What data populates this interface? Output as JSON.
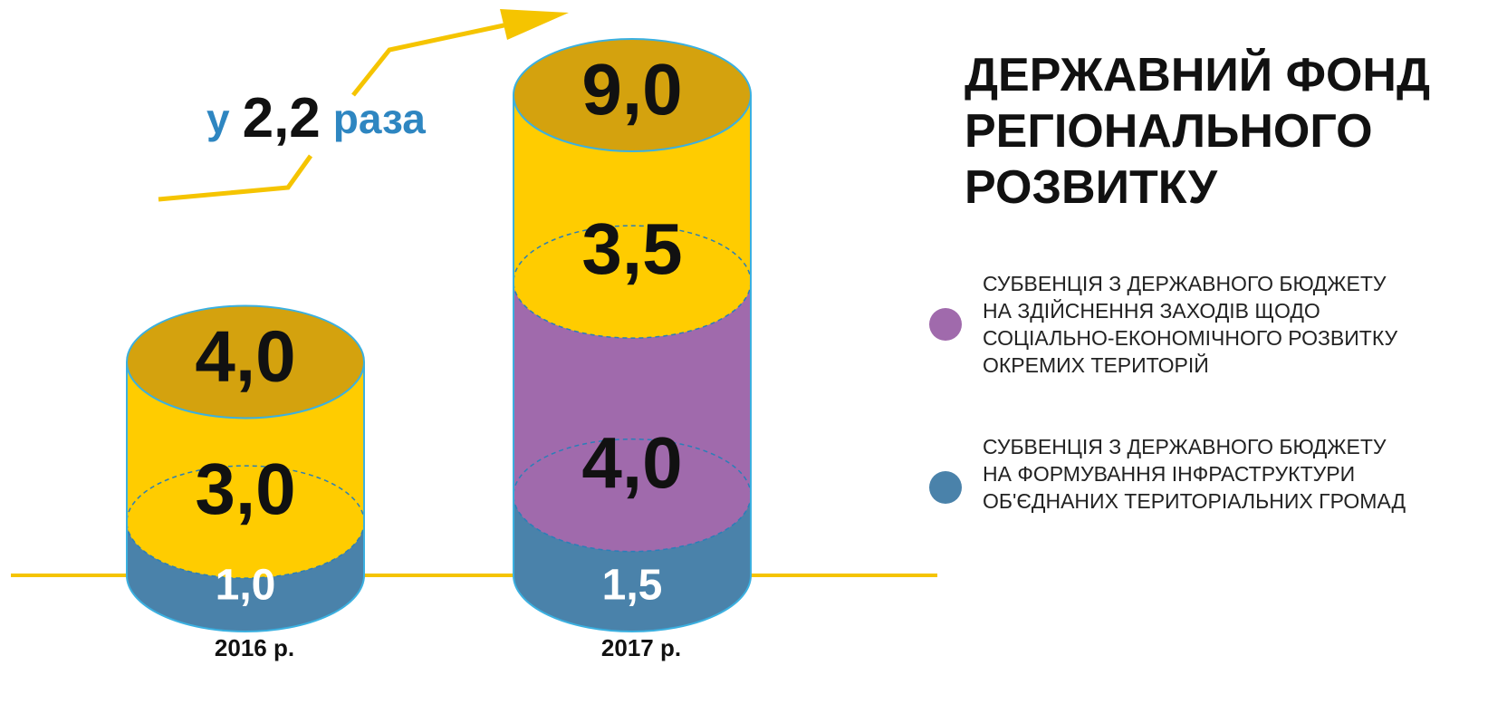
{
  "chart_data": {
    "type": "bar",
    "title": "ДЕРЖАВНИЙ ФОНД РЕГІОНАЛЬНОГО РОЗВИТКУ",
    "annotation": {
      "prefix": "у",
      "value": "2,2",
      "suffix": "раза"
    },
    "categories": [
      "2016 р.",
      "2017 р."
    ],
    "series": [
      {
        "name": "СУБВЕНЦІЯ З ДЕРЖАВНОГО БЮДЖЕТУ НА ФОРМУВАННЯ ІНФРАСТРУКТУРИ ОБ'ЄДНАНИХ ТЕРИТОРІАЛЬНИХ ГРОМАД",
        "color": "#4a82aa",
        "values": [
          1.0,
          1.5
        ],
        "value_labels": [
          "1,0",
          "1,5"
        ]
      },
      {
        "name": "СУБВЕНЦІЯ З ДЕРЖАВНОГО БЮДЖЕТУ НА ЗДІЙСНЕННЯ ЗАХОДІВ ЩОДО СОЦІАЛЬНО-ЕКОНОМІЧНОГО РОЗВИТКУ ОКРЕМИХ ТЕРИТОРІЙ",
        "color": "#a06aac",
        "values": [
          null,
          4.0
        ],
        "value_labels": [
          null,
          "4,0"
        ]
      },
      {
        "color": "#ffcc00",
        "values": [
          3.0,
          3.5
        ],
        "value_labels": [
          "3,0",
          "3,5"
        ]
      }
    ],
    "totals": [
      4.0,
      9.0
    ],
    "total_labels": [
      "4,0",
      "9,0"
    ],
    "total_color": "#d4a20e"
  }
}
